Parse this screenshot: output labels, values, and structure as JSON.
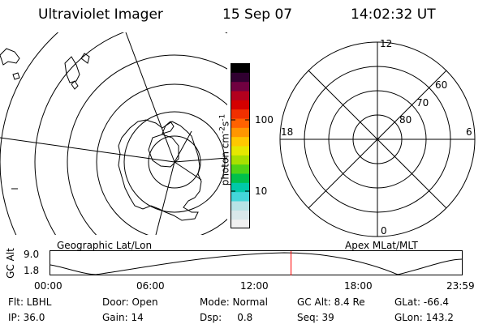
{
  "header": {
    "instrument": "Ultraviolet Imager",
    "date": "15 Sep 07",
    "time": "14:02:32 UT"
  },
  "geo_panel": {
    "caption": "Geographic Lat/Lon"
  },
  "colorbar": {
    "unit_label": "photon cm",
    "unit_exp1": "-2",
    "unit_s": "s",
    "unit_exp2": "-1",
    "tick_labels": [
      "100",
      "10"
    ],
    "colors": [
      "#f0f0f0",
      "#d9e8ea",
      "#b7e3e6",
      "#44d6d9",
      "#00c9a8",
      "#00c04b",
      "#4fd316",
      "#a8e000",
      "#e6e800",
      "#ffc800",
      "#ff9600",
      "#ff6200",
      "#f03000",
      "#d40000",
      "#b2001e",
      "#700040",
      "#300030",
      "#000000"
    ]
  },
  "polar_panel": {
    "caption": "Apex MLat/MLT",
    "mlt_labels": {
      "top": "12",
      "left": "18",
      "right": "6",
      "bottom": "0"
    },
    "lat_labels": [
      "60",
      "70",
      "80"
    ]
  },
  "timeline": {
    "axis_label": "GC Alt",
    "y_max": "9.0",
    "y_min": "1.8",
    "ticks": [
      "00:00",
      "06:00",
      "12:00",
      "18:00",
      "23:59"
    ],
    "current_time_hours": 14.04,
    "marker_color": "#ff0000"
  },
  "info": {
    "row1": [
      "Flt: LBHL",
      "Door: Open",
      "Mode: Normal",
      "GC Alt: 8.4 Re",
      "GLat: -66.4"
    ],
    "row2": [
      "IP: 36.0",
      "Gain: 14",
      "Dsp:     0.8",
      "Seq: 39",
      "GLon: 143.2"
    ]
  }
}
